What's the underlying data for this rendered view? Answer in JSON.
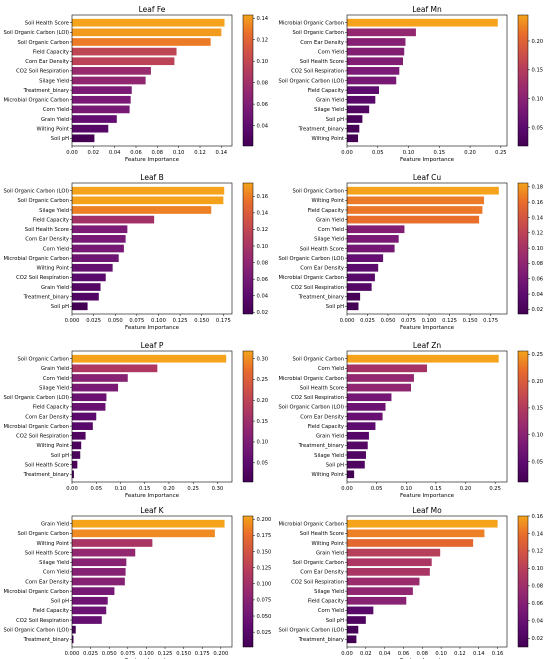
{
  "figure": {
    "xlabel": "Feature Importance",
    "colormap": [
      "#440154",
      "#5c0a6e",
      "#7a1a75",
      "#972a6f",
      "#b23b5e",
      "#cf5246",
      "#e96d2b",
      "#f4a31a"
    ]
  },
  "chart_data": [
    {
      "type": "bar",
      "orientation": "horizontal",
      "title": "Leaf Fe",
      "xlabel": "Feature Importance",
      "xlim": [
        0,
        0.15
      ],
      "xticks": [
        "0.00",
        "0.02",
        "0.04",
        "0.06",
        "0.08",
        "0.10",
        "0.12",
        "0.14"
      ],
      "xtick_values": [
        0,
        0.02,
        0.04,
        0.06,
        0.08,
        0.1,
        0.12,
        0.14
      ],
      "colorbar_ticks": [
        "0.14",
        "0.12",
        "0.10",
        "0.08",
        "0.06",
        "0.04"
      ],
      "colorbar_tick_values": [
        0.14,
        0.12,
        0.1,
        0.08,
        0.06,
        0.04
      ],
      "colorbar_range": [
        0.021,
        0.143
      ],
      "categories": [
        "Soil Health Score",
        "Soil Organic Carbon (LOI)",
        "Soil Organic Carbon",
        "Field Capacity",
        "Corn Ear Density",
        "CO2 Soil Respiration",
        "Silage Yield",
        "Treatment_binary",
        "Microbial Organic Carbon",
        "Corn Yield",
        "Grain Yield",
        "Wilting Point",
        "Soil pH"
      ],
      "values": [
        0.143,
        0.14,
        0.13,
        0.098,
        0.096,
        0.074,
        0.069,
        0.056,
        0.055,
        0.054,
        0.042,
        0.034,
        0.021
      ]
    },
    {
      "type": "bar",
      "orientation": "horizontal",
      "title": "Leaf Mn",
      "xlabel": "Feature Importance",
      "xlim": [
        0,
        0.26
      ],
      "xticks": [
        "0.00",
        "0.05",
        "0.10",
        "0.15",
        "0.20",
        "0.25"
      ],
      "xtick_values": [
        0,
        0.05,
        0.1,
        0.15,
        0.2,
        0.25
      ],
      "colorbar_ticks": [
        "0.20",
        "0.15",
        "0.10",
        "0.05"
      ],
      "colorbar_tick_values": [
        0.2,
        0.15,
        0.1,
        0.05
      ],
      "colorbar_range": [
        0.018,
        0.245
      ],
      "categories": [
        "Microbial Organic Carbon",
        "Soil Organic Carbon",
        "Corn Ear Density",
        "Corn Yield",
        "Soil Health Score",
        "CO2 Soil Respiration",
        "Soil Organic Carbon (LOI)",
        "Field Capacity",
        "Grain Yield",
        "Silage Yield",
        "Soil pH",
        "Treatment_binary",
        "Wilting Point"
      ],
      "values": [
        0.245,
        0.112,
        0.095,
        0.093,
        0.091,
        0.085,
        0.08,
        0.052,
        0.046,
        0.036,
        0.025,
        0.02,
        0.018
      ]
    },
    {
      "type": "bar",
      "orientation": "horizontal",
      "title": "Leaf B",
      "xlabel": "Feature Importance",
      "xlim": [
        0,
        0.185
      ],
      "xticks": [
        "0.000",
        "0.025",
        "0.050",
        "0.075",
        "0.100",
        "0.125",
        "0.150",
        "0.175"
      ],
      "xtick_values": [
        0,
        0.025,
        0.05,
        0.075,
        0.1,
        0.125,
        0.15,
        0.175
      ],
      "colorbar_ticks": [
        "0.16",
        "0.14",
        "0.12",
        "0.10",
        "0.08",
        "0.06",
        "0.04",
        "0.02"
      ],
      "colorbar_tick_values": [
        0.16,
        0.14,
        0.12,
        0.1,
        0.08,
        0.06,
        0.04,
        0.02
      ],
      "colorbar_range": [
        0.018,
        0.176
      ],
      "categories": [
        "Soil Organic Carbon (LOI)",
        "Soil Organic Carbon",
        "Silage Yield",
        "Field Capacity",
        "Soil Health Score",
        "Corn Ear Density",
        "Corn Yield",
        "Microbial Organic Carbon",
        "Wilting Point",
        "CO2 Soil Respiration",
        "Grain Yield",
        "Treatment_binary",
        "Soil pH"
      ],
      "values": [
        0.176,
        0.175,
        0.161,
        0.095,
        0.064,
        0.062,
        0.06,
        0.054,
        0.047,
        0.039,
        0.033,
        0.031,
        0.018
      ]
    },
    {
      "type": "bar",
      "orientation": "horizontal",
      "title": "Leaf Cu",
      "xlabel": "Feature Importance",
      "xlim": [
        0,
        0.195
      ],
      "xticks": [
        "0.000",
        "0.025",
        "0.050",
        "0.075",
        "0.100",
        "0.125",
        "0.150",
        "0.175"
      ],
      "xtick_values": [
        0,
        0.025,
        0.05,
        0.075,
        0.1,
        0.125,
        0.15,
        0.175
      ],
      "colorbar_ticks": [
        "0.18",
        "0.16",
        "0.14",
        "0.12",
        "0.10",
        "0.08",
        "0.06",
        "0.04",
        "0.02"
      ],
      "colorbar_tick_values": [
        0.18,
        0.16,
        0.14,
        0.12,
        0.1,
        0.08,
        0.06,
        0.04,
        0.02
      ],
      "colorbar_range": [
        0.014,
        0.185
      ],
      "categories": [
        "Soil Organic Carbon",
        "Wilting Point",
        "Field Capacity",
        "Grain Yield",
        "Corn Yield",
        "Silage Yield",
        "Soil Health Score",
        "Soil Organic Carbon (LOI)",
        "Corn Ear Density",
        "Microbial Organic Carbon",
        "CO2 Soil Respiration",
        "Treatment_binary",
        "Soil pH"
      ],
      "values": [
        0.185,
        0.167,
        0.165,
        0.161,
        0.07,
        0.063,
        0.058,
        0.044,
        0.038,
        0.034,
        0.03,
        0.016,
        0.014
      ]
    },
    {
      "type": "bar",
      "orientation": "horizontal",
      "title": "Leaf P",
      "xlabel": "Feature Importance",
      "xlim": [
        0,
        0.33
      ],
      "xticks": [
        "0.00",
        "0.05",
        "0.10",
        "0.15",
        "0.20",
        "0.25",
        "0.30"
      ],
      "xtick_values": [
        0,
        0.05,
        0.1,
        0.15,
        0.2,
        0.25,
        0.3
      ],
      "colorbar_ticks": [
        "0.30",
        "0.25",
        "0.20",
        "0.15",
        "0.10",
        "0.05"
      ],
      "colorbar_tick_values": [
        0.3,
        0.25,
        0.2,
        0.15,
        0.1,
        0.05
      ],
      "colorbar_range": [
        0.004,
        0.318
      ],
      "categories": [
        "Soil Organic Carbon",
        "Grain Yield",
        "Corn Yield",
        "Silage Yield",
        "Soil Organic Carbon (LOI)",
        "Field Capacity",
        "Corn Ear Density",
        "Microbial Organic Carbon",
        "CO2 Soil Respiration",
        "Wilting Point",
        "Soil pH",
        "Soil Health Score",
        "Treatment_binary"
      ],
      "values": [
        0.318,
        0.176,
        0.115,
        0.095,
        0.071,
        0.069,
        0.05,
        0.043,
        0.028,
        0.019,
        0.017,
        0.011,
        0.004
      ]
    },
    {
      "type": "bar",
      "orientation": "horizontal",
      "title": "Leaf Zn",
      "xlabel": "Feature Importance",
      "xlim": [
        0,
        0.27
      ],
      "xticks": [
        "0.00",
        "0.05",
        "0.10",
        "0.15",
        "0.20",
        "0.25"
      ],
      "xtick_values": [
        0,
        0.05,
        0.1,
        0.15,
        0.2,
        0.25
      ],
      "colorbar_ticks": [
        "0.25",
        "0.20",
        "0.15",
        "0.10",
        "0.05"
      ],
      "colorbar_tick_values": [
        0.25,
        0.2,
        0.15,
        0.1,
        0.05
      ],
      "colorbar_range": [
        0.012,
        0.256
      ],
      "categories": [
        "Soil Organic Carbon",
        "Corn Yield",
        "Microbial Organic Carbon",
        "Soil Health Score",
        "CO2 Soil Respiration",
        "Soil Organic Carbon (LOI)",
        "Corn Ear Density",
        "Field Capacity",
        "Grain Yield",
        "Treatment_binary",
        "Silage Yield",
        "Soil pH",
        "Wilting Point"
      ],
      "values": [
        0.256,
        0.135,
        0.113,
        0.108,
        0.075,
        0.065,
        0.06,
        0.048,
        0.037,
        0.035,
        0.032,
        0.03,
        0.012
      ]
    },
    {
      "type": "bar",
      "orientation": "horizontal",
      "title": "Leaf K",
      "xlabel": "Feature Importance",
      "xlim": [
        0,
        0.215
      ],
      "xticks": [
        "0.000",
        "0.025",
        "0.050",
        "0.075",
        "0.100",
        "0.125",
        "0.150",
        "0.175",
        "0.200"
      ],
      "xtick_values": [
        0,
        0.025,
        0.05,
        0.075,
        0.1,
        0.125,
        0.15,
        0.175,
        0.2
      ],
      "colorbar_ticks": [
        "0.200",
        "0.175",
        "0.150",
        "0.125",
        "0.100",
        "0.075",
        "0.050",
        "0.025"
      ],
      "colorbar_tick_values": [
        0.2,
        0.175,
        0.15,
        0.125,
        0.1,
        0.075,
        0.05,
        0.025
      ],
      "colorbar_range": [
        0.002,
        0.205
      ],
      "categories": [
        "Grain Yield",
        "Soil Organic Carbon",
        "Wilting Point",
        "Soil Health Score",
        "Silage Yield",
        "Corn Yield",
        "Corn Ear Density",
        "Microbial Organic Carbon",
        "Soil pH",
        "Field Capacity",
        "CO2 Soil Respiration",
        "Soil Organic Carbon (LOI)",
        "Treatment_binary"
      ],
      "values": [
        0.205,
        0.192,
        0.108,
        0.085,
        0.073,
        0.072,
        0.071,
        0.057,
        0.048,
        0.046,
        0.04,
        0.005,
        0.002
      ]
    },
    {
      "type": "bar",
      "orientation": "horizontal",
      "title": "Leaf Mo",
      "xlabel": "Feature Importance",
      "xlim": [
        0,
        0.17
      ],
      "xticks": [
        "0.00",
        "0.02",
        "0.04",
        "0.06",
        "0.08",
        "0.10",
        "0.12",
        "0.14",
        "0.16"
      ],
      "xtick_values": [
        0,
        0.02,
        0.04,
        0.06,
        0.08,
        0.1,
        0.12,
        0.14,
        0.16
      ],
      "colorbar_ticks": [
        "0.16",
        "0.14",
        "0.12",
        "0.10",
        "0.08",
        "0.06",
        "0.04",
        "0.02"
      ],
      "colorbar_tick_values": [
        0.16,
        0.14,
        0.12,
        0.1,
        0.08,
        0.06,
        0.04,
        0.02
      ],
      "colorbar_range": [
        0.01,
        0.16
      ],
      "categories": [
        "Microbial Organic Carbon",
        "Soil Health Score",
        "Wilting Point",
        "Grain Yield",
        "Soil Organic Carbon",
        "Corn Ear Density",
        "CO2 Soil Respiration",
        "Silage Yield",
        "Field Capacity",
        "Corn Yield",
        "Soil pH",
        "Soil Organic Carbon (LOI)",
        "Treatment_binary"
      ],
      "values": [
        0.16,
        0.146,
        0.134,
        0.099,
        0.09,
        0.088,
        0.077,
        0.07,
        0.063,
        0.028,
        0.02,
        0.012,
        0.01
      ]
    }
  ]
}
